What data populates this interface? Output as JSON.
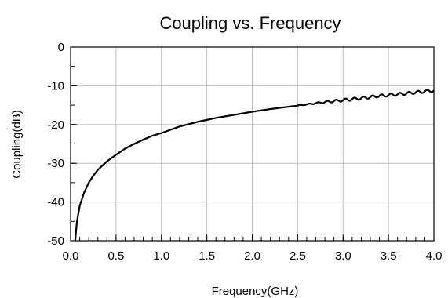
{
  "chart_data": {
    "type": "line",
    "title": "Coupling vs. Frequency",
    "xlabel": "Frequency(GHz)",
    "ylabel": "Coupling(dB)",
    "xlim": [
      0,
      4
    ],
    "ylim": [
      -50,
      0
    ],
    "grid": true,
    "x_ticks": [
      "0.0",
      "0.5",
      "1.0",
      "1.5",
      "2.0",
      "2.5",
      "3.0",
      "3.5",
      "4.0"
    ],
    "y_ticks": [
      "0",
      "-10",
      "-20",
      "-30",
      "-40",
      "-50"
    ],
    "series": [
      {
        "x": [
          0.05,
          0.07,
          0.1,
          0.15,
          0.2,
          0.25,
          0.3,
          0.4,
          0.5,
          0.6,
          0.7,
          0.8,
          0.9,
          1.0,
          1.2,
          1.4,
          1.6,
          1.8,
          2.0,
          2.2,
          2.4,
          2.6,
          2.8,
          3.0,
          3.2,
          3.4,
          3.6,
          3.8,
          4.0
        ],
        "y": [
          -50.0,
          -45.0,
          -41.0,
          -37.5,
          -35.0,
          -33.2,
          -31.7,
          -29.5,
          -27.8,
          -26.2,
          -25.0,
          -23.9,
          -22.9,
          -22.2,
          -20.5,
          -19.3,
          -18.3,
          -17.5,
          -16.7,
          -16.0,
          -15.4,
          -14.8,
          -14.2,
          -13.7,
          -13.2,
          -12.6,
          -12.2,
          -11.7,
          -11.2
        ]
      }
    ]
  }
}
